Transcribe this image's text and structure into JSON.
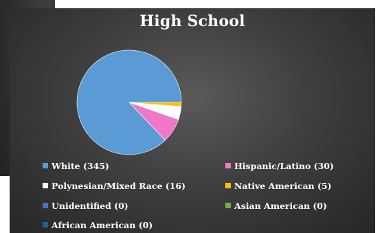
{
  "chart_data": {
    "type": "pie",
    "title": "High School",
    "slices": [
      {
        "label": "White (345)",
        "value": 345,
        "color": "#5b9bd5"
      },
      {
        "label": "Hispanic/Latino (30)",
        "value": 30,
        "color": "#f078c8"
      },
      {
        "label": "Polynesian/Mixed Race (16)",
        "value": 16,
        "color": "#ffffff"
      },
      {
        "label": "Native American (5)",
        "value": 5,
        "color": "#ffc000"
      },
      {
        "label": "Unidentified (0)",
        "value": 0,
        "color": "#4472c4"
      },
      {
        "label": "Asian American (0)",
        "value": 0,
        "color": "#70ad47"
      },
      {
        "label": "African American (0)",
        "value": 0,
        "color": "#255e91"
      }
    ],
    "legend_position": "bottom"
  }
}
